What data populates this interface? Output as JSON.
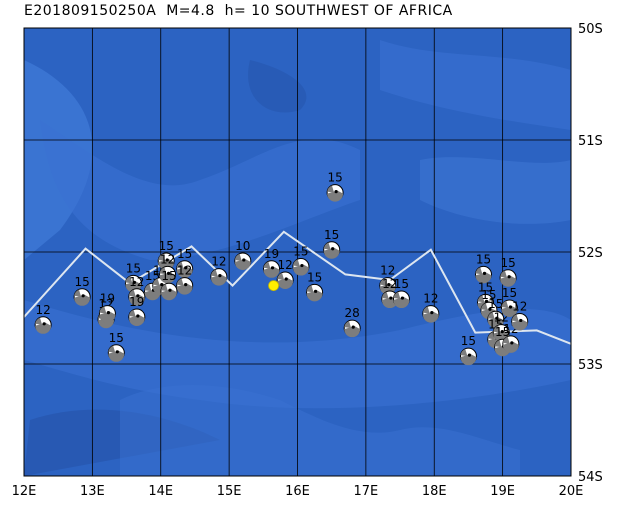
{
  "title": "E201809150250A  M=4.8  h= 10 SOUTHWEST OF AFRICA",
  "map": {
    "lon_range": [
      12,
      20
    ],
    "lat_range": [
      -54,
      -50
    ],
    "lon_ticks": [
      "12E",
      "13E",
      "14E",
      "15E",
      "16E",
      "17E",
      "18E",
      "19E",
      "20E"
    ],
    "lat_ticks": [
      "50S",
      "51S",
      "52S",
      "53S",
      "54S"
    ],
    "ocean_color": "#2c63c2",
    "ridge_color": "#dde6f0",
    "epicenter_color": "#ffee00",
    "epicenter": {
      "lon": 15.65,
      "lat": -52.3
    },
    "ridge": [
      [
        12,
        -52.58
      ],
      [
        12.9,
        -51.97
      ],
      [
        13.55,
        -52.28
      ],
      [
        14.45,
        -51.95
      ],
      [
        15.05,
        -52.3
      ],
      [
        15.8,
        -51.82
      ],
      [
        16.7,
        -52.2
      ],
      [
        17.35,
        -52.25
      ],
      [
        17.95,
        -51.98
      ],
      [
        18.6,
        -52.72
      ],
      [
        19.5,
        -52.7
      ],
      [
        20,
        -52.82
      ]
    ],
    "events": [
      {
        "lon": 12.28,
        "lat": -52.65,
        "depth": "12"
      },
      {
        "lon": 12.85,
        "lat": -52.4,
        "depth": "15"
      },
      {
        "lon": 13.2,
        "lat": -52.6,
        "depth": "12"
      },
      {
        "lon": 13.22,
        "lat": -52.55,
        "depth": "19"
      },
      {
        "lon": 13.35,
        "lat": -52.9,
        "depth": "15"
      },
      {
        "lon": 13.6,
        "lat": -52.28,
        "depth": "15"
      },
      {
        "lon": 13.65,
        "lat": -52.4,
        "depth": "12"
      },
      {
        "lon": 13.65,
        "lat": -52.58,
        "depth": "19"
      },
      {
        "lon": 13.88,
        "lat": -52.35,
        "depth": "15"
      },
      {
        "lon": 14.0,
        "lat": -52.3,
        "depth": "12"
      },
      {
        "lon": 14.08,
        "lat": -52.08,
        "depth": "15"
      },
      {
        "lon": 14.1,
        "lat": -52.2,
        "depth": "12"
      },
      {
        "lon": 14.12,
        "lat": -52.35,
        "depth": "15"
      },
      {
        "lon": 14.35,
        "lat": -52.15,
        "depth": "15"
      },
      {
        "lon": 14.35,
        "lat": -52.3,
        "depth": "12"
      },
      {
        "lon": 14.85,
        "lat": -52.22,
        "depth": "12"
      },
      {
        "lon": 15.2,
        "lat": -52.08,
        "depth": "10"
      },
      {
        "lon": 15.62,
        "lat": -52.15,
        "depth": "19"
      },
      {
        "lon": 15.82,
        "lat": -52.25,
        "depth": "12"
      },
      {
        "lon": 16.05,
        "lat": -52.13,
        "depth": "15"
      },
      {
        "lon": 16.25,
        "lat": -52.36,
        "depth": "15"
      },
      {
        "lon": 16.5,
        "lat": -51.98,
        "depth": "15"
      },
      {
        "lon": 16.55,
        "lat": -51.47,
        "depth": "15"
      },
      {
        "lon": 16.8,
        "lat": -52.68,
        "depth": "28"
      },
      {
        "lon": 17.32,
        "lat": -52.3,
        "depth": "12"
      },
      {
        "lon": 17.35,
        "lat": -52.42,
        "depth": "12"
      },
      {
        "lon": 17.52,
        "lat": -52.42,
        "depth": "15"
      },
      {
        "lon": 17.95,
        "lat": -52.55,
        "depth": "12"
      },
      {
        "lon": 18.5,
        "lat": -52.93,
        "depth": "15"
      },
      {
        "lon": 18.72,
        "lat": -52.2,
        "depth": "15"
      },
      {
        "lon": 18.75,
        "lat": -52.45,
        "depth": "15"
      },
      {
        "lon": 18.8,
        "lat": -52.52,
        "depth": "15"
      },
      {
        "lon": 18.9,
        "lat": -52.6,
        "depth": "15"
      },
      {
        "lon": 18.9,
        "lat": -52.78,
        "depth": "15"
      },
      {
        "lon": 18.98,
        "lat": -52.72,
        "depth": "12"
      },
      {
        "lon": 19.0,
        "lat": -52.85,
        "depth": "15"
      },
      {
        "lon": 19.08,
        "lat": -52.23,
        "depth": "15"
      },
      {
        "lon": 19.1,
        "lat": -52.5,
        "depth": "15"
      },
      {
        "lon": 19.12,
        "lat": -52.82,
        "depth": "12"
      },
      {
        "lon": 19.25,
        "lat": -52.62,
        "depth": "12"
      }
    ]
  }
}
